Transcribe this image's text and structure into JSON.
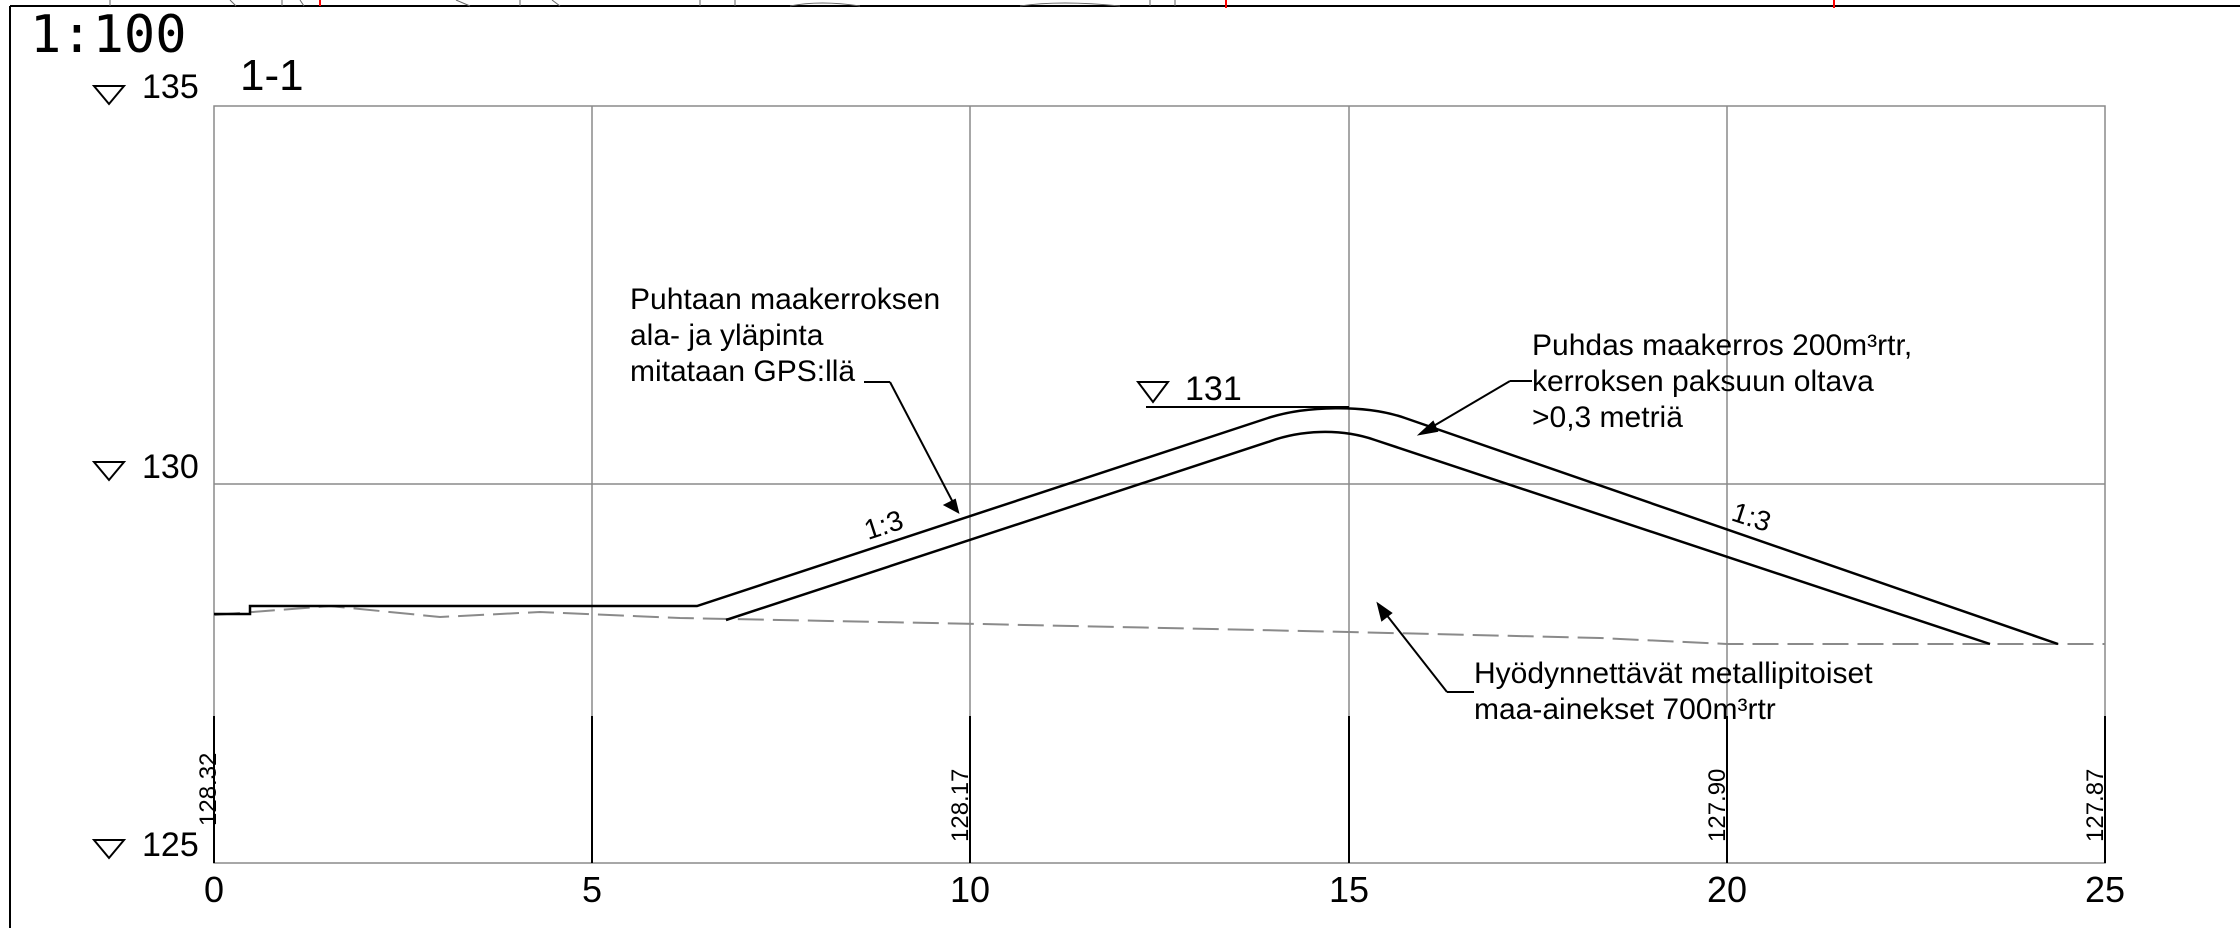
{
  "header": {
    "scale": "1:100",
    "section_id": "1-1"
  },
  "elevation_labels": {
    "top": "135",
    "mid": "130",
    "bottom": "125",
    "crest": "131"
  },
  "x_axis": {
    "ticks": [
      "0",
      "5",
      "10",
      "15",
      "20",
      "25"
    ]
  },
  "ground_elevations": [
    "128.32",
    "128.17",
    "127.90",
    "127.87"
  ],
  "slope_labels": {
    "left": "1:3",
    "right": "1:3"
  },
  "annotations": {
    "measurement": [
      "Puhtaan maakerroksen",
      "ala- ja yläpinta",
      "mitataan GPS:llä"
    ],
    "clean_layer": [
      "Puhdas maakerros 200m³rtr,",
      "kerroksen paksuun oltava",
      ">0,3 metriä"
    ],
    "metal_soil": [
      "Hyödynnettävät metallipitoiset",
      "maa-ainekset 700m³rtr"
    ]
  },
  "colors": {
    "line": "#000000",
    "grid": "#8a8a8a",
    "dashed": "#8a8a8a",
    "red_mark": "#ff0000"
  }
}
